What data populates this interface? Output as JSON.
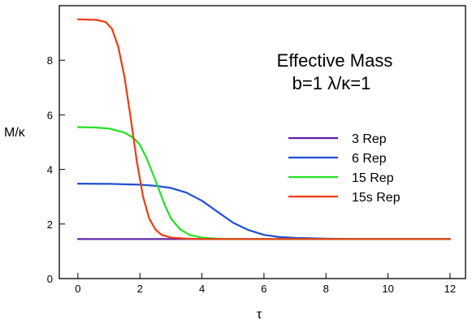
{
  "chart_data": {
    "type": "line",
    "title": "Effective Mass",
    "subtitle": "b=1 λ/κ=1",
    "xlabel": "τ",
    "ylabel": "M/κ",
    "xlim": [
      -0.6,
      12.5
    ],
    "ylim": [
      0,
      10
    ],
    "xticks": [
      0,
      2,
      4,
      6,
      8,
      10,
      12
    ],
    "yticks": [
      0,
      2,
      4,
      6,
      8
    ],
    "grid": false,
    "legend_position": "right",
    "series": [
      {
        "name": "3 Rep",
        "color": "#5a1fa8",
        "x": [
          0,
          2,
          4,
          6,
          8,
          10,
          12
        ],
        "y": [
          1.45,
          1.45,
          1.45,
          1.45,
          1.45,
          1.45,
          1.45
        ]
      },
      {
        "name": "6 Rep",
        "color": "#1f4fd6",
        "x": [
          0,
          1,
          2,
          2.5,
          3,
          3.5,
          4,
          4.5,
          5,
          5.5,
          6,
          6.5,
          7,
          8,
          9,
          10,
          12
        ],
        "y": [
          3.48,
          3.47,
          3.44,
          3.4,
          3.32,
          3.15,
          2.85,
          2.45,
          2.05,
          1.78,
          1.6,
          1.52,
          1.49,
          1.46,
          1.45,
          1.45,
          1.45
        ]
      },
      {
        "name": "15 Rep",
        "color": "#22e022",
        "x": [
          0,
          0.5,
          1,
          1.5,
          1.8,
          2,
          2.2,
          2.5,
          2.8,
          3,
          3.3,
          3.6,
          4,
          4.5,
          5,
          6,
          12
        ],
        "y": [
          5.55,
          5.54,
          5.5,
          5.35,
          5.15,
          4.9,
          4.45,
          3.6,
          2.7,
          2.2,
          1.8,
          1.6,
          1.5,
          1.46,
          1.45,
          1.45,
          1.45
        ]
      },
      {
        "name": "15s Rep",
        "color": "#f03a10",
        "x": [
          0,
          0.6,
          0.9,
          1.1,
          1.3,
          1.5,
          1.7,
          1.9,
          2.1,
          2.3,
          2.5,
          2.7,
          3,
          3.5,
          4,
          12
        ],
        "y": [
          9.5,
          9.48,
          9.4,
          9.15,
          8.5,
          7.4,
          5.9,
          4.3,
          3.0,
          2.2,
          1.8,
          1.6,
          1.5,
          1.46,
          1.45,
          1.45
        ]
      }
    ]
  }
}
